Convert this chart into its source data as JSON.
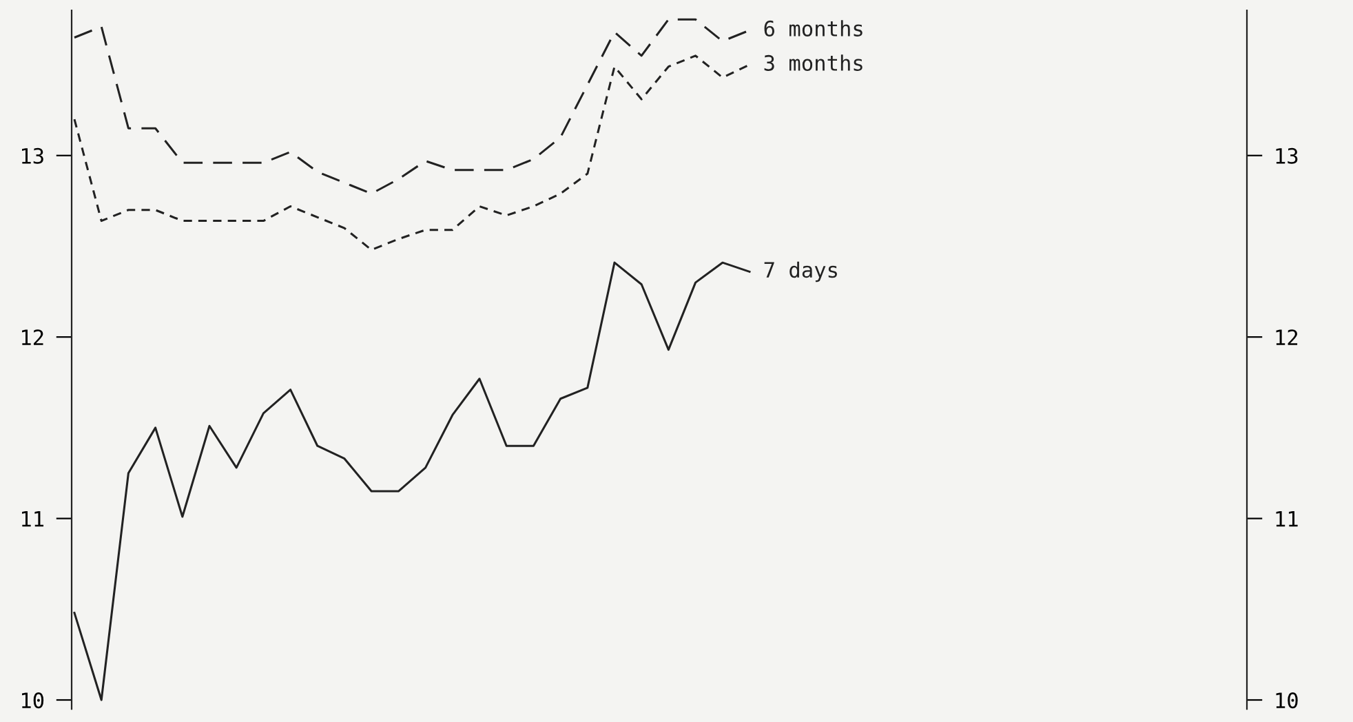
{
  "chart_data": {
    "type": "line",
    "categories": [
      null,
      null,
      null,
      null,
      null,
      null,
      null,
      null,
      null,
      null,
      null,
      null,
      null,
      null,
      null,
      null,
      null,
      null,
      null,
      null,
      null,
      null,
      null,
      null,
      null,
      null
    ],
    "series": [
      {
        "name": "6 months",
        "color": "#222222",
        "line_style": "dashed",
        "values": [
          13.65,
          13.71,
          13.15,
          13.15,
          12.96,
          12.96,
          12.96,
          12.96,
          13.02,
          12.91,
          12.85,
          12.79,
          12.87,
          12.97,
          12.92,
          12.92,
          12.92,
          12.98,
          13.1,
          13.39,
          13.68,
          13.55,
          13.75,
          13.75,
          13.63,
          13.69
        ]
      },
      {
        "name": "3 months",
        "color": "#222222",
        "line_style": "dotted",
        "values": [
          13.2,
          12.64,
          12.7,
          12.7,
          12.64,
          12.64,
          12.64,
          12.64,
          12.72,
          12.66,
          12.6,
          12.48,
          12.54,
          12.59,
          12.59,
          12.72,
          12.67,
          12.72,
          12.79,
          12.9,
          13.49,
          13.31,
          13.49,
          13.55,
          13.43,
          13.5
        ]
      },
      {
        "name": "7 days",
        "color": "#222222",
        "line_style": "solid",
        "values": [
          10.48,
          10.0,
          11.25,
          11.5,
          11.01,
          11.51,
          11.28,
          11.58,
          11.71,
          11.4,
          11.33,
          11.15,
          11.15,
          11.28,
          11.57,
          11.77,
          11.4,
          11.4,
          11.66,
          11.72,
          12.41,
          12.29,
          11.93,
          12.3,
          12.41,
          12.36
        ]
      }
    ],
    "ylim": [
      9.95,
      13.8
    ],
    "yticks": [
      10,
      11,
      12,
      13
    ],
    "y2lim": [
      9.95,
      13.8
    ],
    "y2ticks": [
      10,
      11,
      12,
      13
    ],
    "grid": false,
    "legend": false
  }
}
